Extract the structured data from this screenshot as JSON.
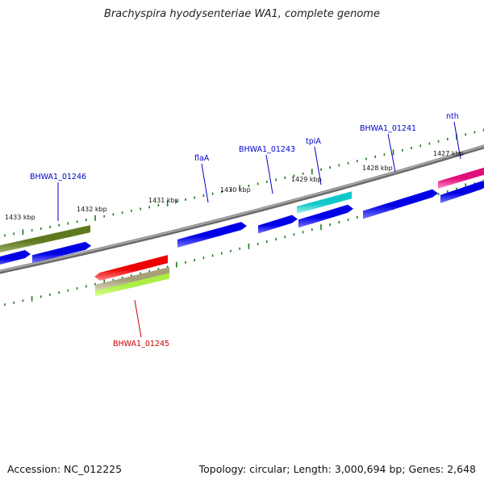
{
  "title": "Brachyspira hyodysenteriae WA1, complete genome",
  "footer": {
    "accession": "Accession: NC_012225",
    "summary": "Topology: circular; Length: 3,000,694 bp; Genes: 2,648"
  },
  "scale": {
    "labels": [
      "1427 kbp",
      "1428 kbp",
      "1429 kbp",
      "1430 kbp",
      "1431 kbp",
      "1432 kbp",
      "1433 kbp"
    ]
  },
  "colors": {
    "cds": "#0000dd",
    "cds_light": "#8888ff",
    "label_blue": "#0000cc",
    "label_red": "#cc0000",
    "tick": "#1e7a1e",
    "backbone": "#888888"
  },
  "genes": [
    {
      "label": "BHWA1_01246",
      "color": "label_blue"
    },
    {
      "label": "flaA",
      "color": "label_blue"
    },
    {
      "label": "BHWA1_01243",
      "color": "label_blue"
    },
    {
      "label": "tpiA",
      "color": "label_blue"
    },
    {
      "label": "BHWA1_01241",
      "color": "label_blue"
    },
    {
      "label": "nth",
      "color": "label_blue"
    },
    {
      "label": "BHWA1_01245",
      "color": "label_red"
    }
  ]
}
